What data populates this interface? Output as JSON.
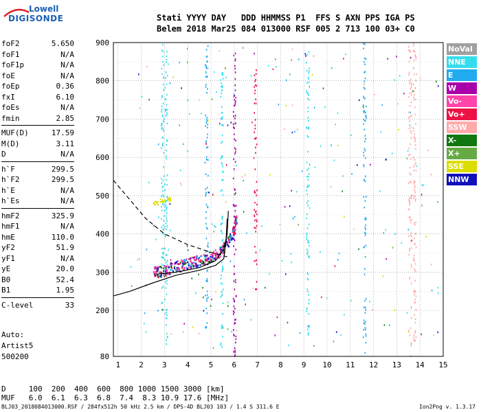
{
  "logo": {
    "line1": "Lowell",
    "line2": "DIGISONDE"
  },
  "header": {
    "line1": "Stati YYYY DAY   DDD HHMMSS P1  FFS S AXN PPS IGA PS",
    "line2": "Belem 2018 Mar25 084 013000 RSF 005 2 713 100 03+ C0"
  },
  "params": [
    {
      "label": "foF2",
      "value": "5.650"
    },
    {
      "label": "foF1",
      "value": "N/A"
    },
    {
      "label": "foF1p",
      "value": "N/A"
    },
    {
      "label": "foE",
      "value": "N/A"
    },
    {
      "label": "foEp",
      "value": "0.36"
    },
    {
      "label": "fxI",
      "value": "6.10"
    },
    {
      "label": "foEs",
      "value": "N/A"
    },
    {
      "label": "fmin",
      "value": "2.85"
    },
    {
      "label": "MUF(D)",
      "value": "17.59"
    },
    {
      "label": "M(D)",
      "value": "3.11"
    },
    {
      "label": "D",
      "value": "N/A"
    },
    {
      "label": "h`F",
      "value": "299.5"
    },
    {
      "label": "h`F2",
      "value": "299.5"
    },
    {
      "label": "h`E",
      "value": "N/A"
    },
    {
      "label": "h`Es",
      "value": "N/A"
    },
    {
      "label": "hmF2",
      "value": "325.9"
    },
    {
      "label": "hmF1",
      "value": "N/A"
    },
    {
      "label": "hmE",
      "value": "110.0"
    },
    {
      "label": "yF2",
      "value": "51.9"
    },
    {
      "label": "yF1",
      "value": "N/A"
    },
    {
      "label": "yE",
      "value": "20.0"
    },
    {
      "label": "B0",
      "value": "52.4"
    },
    {
      "label": "B1",
      "value": "1.95"
    },
    {
      "label": "C-level",
      "value": "33"
    }
  ],
  "auto": {
    "line1": "Auto:",
    "line2": "Artist5",
    "line3": "500200"
  },
  "legend": [
    {
      "label": "NoVal",
      "color": "#a0a0a0"
    },
    {
      "label": "NNE",
      "color": "#33ddee"
    },
    {
      "label": "E",
      "color": "#22aaee"
    },
    {
      "label": "W",
      "color": "#aa00aa"
    },
    {
      "label": "Vo-",
      "color": "#ff44aa"
    },
    {
      "label": "Vo+",
      "color": "#ee1144"
    },
    {
      "label": "SSW",
      "color": "#ffaaaa"
    },
    {
      "label": "X-",
      "color": "#117711"
    },
    {
      "label": "X+",
      "color": "#66aa44"
    },
    {
      "label": "SSE",
      "color": "#dddd00"
    },
    {
      "label": "NNW",
      "color": "#1111bb"
    }
  ],
  "muf_table": {
    "line1": "D     100  200  400  600  800 1000 1500 3000 [km]",
    "line2": "MUF   6.0  6.1  6.3  6.8  7.4  8.3 10.9 17.6 [MHz]"
  },
  "footer": {
    "left": "BLJ03_2018084013000.RSF / 284fx512h 50 kHz 2.5 km / DPS-4D BLJ03 103 / 1.4 S 311.6 E",
    "right": "Ion2Png v. 1.3.17"
  },
  "chart_data": {
    "type": "scatter",
    "xlim": [
      0.8,
      15
    ],
    "ylim": [
      80,
      900
    ],
    "x_ticks": [
      1,
      2,
      3,
      4,
      5,
      6,
      7,
      8,
      9,
      10,
      11,
      12,
      13,
      14,
      15
    ],
    "y_ticks": [
      80,
      200,
      300,
      400,
      500,
      600,
      700,
      800,
      900
    ],
    "grid": true,
    "trace_columns": [
      {
        "x": 2.9,
        "ymin": 200,
        "ymax": 900,
        "color": "#33ddee"
      },
      {
        "x": 3.05,
        "ymin": 100,
        "ymax": 880,
        "color": "#33ddee"
      },
      {
        "x": 4.8,
        "ymin": 150,
        "ymax": 900,
        "color": "#22aaee"
      },
      {
        "x": 5.45,
        "ymin": 100,
        "ymax": 850,
        "color": "#33ddee"
      },
      {
        "x": 6.0,
        "ymin": 80,
        "ymax": 900,
        "color": "#aa00aa"
      },
      {
        "x": 6.9,
        "ymin": 250,
        "ymax": 850,
        "color": "#ee1144"
      },
      {
        "x": 9.15,
        "ymin": 130,
        "ymax": 880,
        "color": "#33ddee"
      },
      {
        "x": 11.6,
        "ymin": 80,
        "ymax": 900,
        "color": "#22aaee"
      },
      {
        "x": 13.55,
        "ymin": 80,
        "ymax": 900,
        "color": "#ffaaaa"
      },
      {
        "x": 13.75,
        "ymin": 120,
        "ymax": 900,
        "color": "#ffaaaa"
      }
    ],
    "f2_trace": [
      {
        "x": 2.5,
        "y": 295
      },
      {
        "x": 3.0,
        "y": 300
      },
      {
        "x": 3.5,
        "y": 310
      },
      {
        "x": 4.0,
        "y": 318
      },
      {
        "x": 4.5,
        "y": 325
      },
      {
        "x": 5.0,
        "y": 335
      },
      {
        "x": 5.5,
        "y": 355
      },
      {
        "x": 5.9,
        "y": 390
      },
      {
        "x": 6.1,
        "y": 440
      }
    ],
    "es_trace": [
      {
        "x": 2.6,
        "y": 482
      },
      {
        "x": 2.9,
        "y": 488
      },
      {
        "x": 3.2,
        "y": 492
      }
    ],
    "profile_curve": [
      {
        "x": 0.8,
        "y": 238
      },
      {
        "x": 1.5,
        "y": 250
      },
      {
        "x": 2.5,
        "y": 272
      },
      {
        "x": 3.5,
        "y": 292
      },
      {
        "x": 4.5,
        "y": 305
      },
      {
        "x": 5.2,
        "y": 318
      },
      {
        "x": 5.55,
        "y": 335
      },
      {
        "x": 5.65,
        "y": 380
      },
      {
        "x": 5.7,
        "y": 440
      }
    ],
    "virtual_height_curve": [
      {
        "x": 2.65,
        "y": 295
      },
      {
        "x": 3.5,
        "y": 300
      },
      {
        "x": 4.5,
        "y": 312
      },
      {
        "x": 5.2,
        "y": 330
      },
      {
        "x": 5.55,
        "y": 360
      },
      {
        "x": 5.7,
        "y": 400
      },
      {
        "x": 5.75,
        "y": 460
      }
    ],
    "dashed_curve": [
      {
        "x": 0.8,
        "y": 540
      },
      {
        "x": 1.5,
        "y": 490
      },
      {
        "x": 2.2,
        "y": 440
      },
      {
        "x": 3.0,
        "y": 400
      },
      {
        "x": 4.0,
        "y": 372
      },
      {
        "x": 5.0,
        "y": 352
      },
      {
        "x": 5.7,
        "y": 340
      }
    ]
  }
}
